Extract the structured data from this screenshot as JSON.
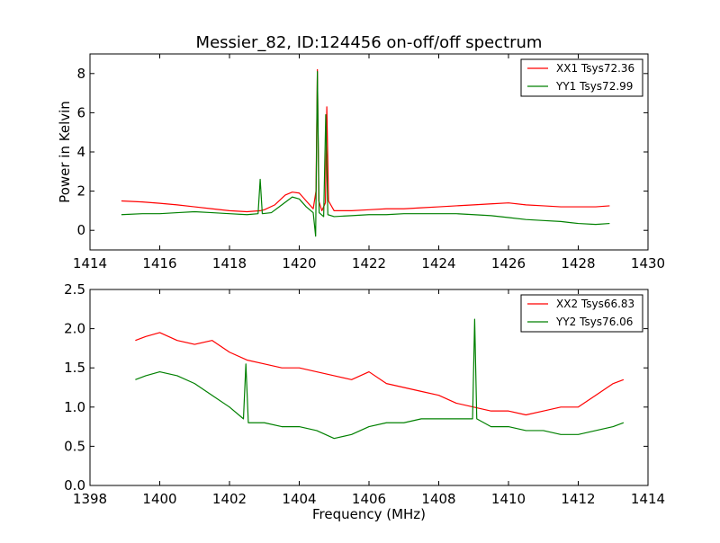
{
  "page": {
    "title": "Messier_82, ID:124456 on-off/off spectrum"
  },
  "chart_data": [
    {
      "type": "line",
      "ylabel": "Power in Kelvin",
      "xlabel": "",
      "xlim": [
        1414,
        1430
      ],
      "ylim": [
        -1,
        9
      ],
      "xticks": [
        1414,
        1416,
        1418,
        1420,
        1422,
        1424,
        1426,
        1428,
        1430
      ],
      "yticks": [
        0,
        2,
        4,
        6,
        8
      ],
      "legend_position": "top-right",
      "series": [
        {
          "name": "XX1 Tsys72.36",
          "color": "#ff0000",
          "points": [
            [
              1414.9,
              1.5
            ],
            [
              1415.5,
              1.45
            ],
            [
              1416.0,
              1.38
            ],
            [
              1416.5,
              1.3
            ],
            [
              1417.0,
              1.2
            ],
            [
              1417.5,
              1.1
            ],
            [
              1418.0,
              1.0
            ],
            [
              1418.5,
              0.95
            ],
            [
              1418.88,
              1.0
            ],
            [
              1419.0,
              1.05
            ],
            [
              1419.3,
              1.3
            ],
            [
              1419.6,
              1.8
            ],
            [
              1419.8,
              1.95
            ],
            [
              1420.0,
              1.9
            ],
            [
              1420.2,
              1.5
            ],
            [
              1420.4,
              1.1
            ],
            [
              1420.48,
              2.0
            ],
            [
              1420.52,
              8.2
            ],
            [
              1420.56,
              1.5
            ],
            [
              1420.65,
              1.0
            ],
            [
              1420.75,
              1.4
            ],
            [
              1420.79,
              6.3
            ],
            [
              1420.84,
              1.5
            ],
            [
              1421.0,
              1.0
            ],
            [
              1421.5,
              1.0
            ],
            [
              1422.0,
              1.05
            ],
            [
              1422.5,
              1.1
            ],
            [
              1423.0,
              1.1
            ],
            [
              1423.5,
              1.15
            ],
            [
              1424.0,
              1.2
            ],
            [
              1424.5,
              1.25
            ],
            [
              1425.0,
              1.3
            ],
            [
              1425.5,
              1.35
            ],
            [
              1426.0,
              1.4
            ],
            [
              1426.5,
              1.3
            ],
            [
              1427.0,
              1.25
            ],
            [
              1427.5,
              1.2
            ],
            [
              1428.0,
              1.2
            ],
            [
              1428.5,
              1.2
            ],
            [
              1428.9,
              1.25
            ]
          ]
        },
        {
          "name": "YY1 Tsys72.99",
          "color": "#008000",
          "points": [
            [
              1414.9,
              0.8
            ],
            [
              1415.5,
              0.85
            ],
            [
              1416.0,
              0.85
            ],
            [
              1416.5,
              0.9
            ],
            [
              1417.0,
              0.95
            ],
            [
              1417.5,
              0.9
            ],
            [
              1418.0,
              0.85
            ],
            [
              1418.5,
              0.8
            ],
            [
              1418.82,
              0.85
            ],
            [
              1418.88,
              2.6
            ],
            [
              1418.94,
              0.85
            ],
            [
              1419.2,
              0.9
            ],
            [
              1419.5,
              1.3
            ],
            [
              1419.8,
              1.7
            ],
            [
              1420.0,
              1.6
            ],
            [
              1420.2,
              1.2
            ],
            [
              1420.4,
              0.9
            ],
            [
              1420.47,
              -0.3
            ],
            [
              1420.52,
              8.1
            ],
            [
              1420.57,
              0.9
            ],
            [
              1420.7,
              0.7
            ],
            [
              1420.76,
              5.9
            ],
            [
              1420.82,
              0.8
            ],
            [
              1421.0,
              0.7
            ],
            [
              1421.5,
              0.75
            ],
            [
              1422.0,
              0.8
            ],
            [
              1422.5,
              0.8
            ],
            [
              1423.0,
              0.85
            ],
            [
              1423.5,
              0.85
            ],
            [
              1424.0,
              0.85
            ],
            [
              1424.5,
              0.85
            ],
            [
              1425.0,
              0.8
            ],
            [
              1425.5,
              0.75
            ],
            [
              1426.0,
              0.65
            ],
            [
              1426.5,
              0.55
            ],
            [
              1427.0,
              0.5
            ],
            [
              1427.5,
              0.45
            ],
            [
              1428.0,
              0.35
            ],
            [
              1428.5,
              0.3
            ],
            [
              1428.9,
              0.35
            ]
          ]
        }
      ]
    },
    {
      "type": "line",
      "ylabel": "",
      "xlabel": "Frequency (MHz)",
      "xlim": [
        1398,
        1414
      ],
      "ylim": [
        0,
        2.5
      ],
      "xticks": [
        1398,
        1400,
        1402,
        1404,
        1406,
        1408,
        1410,
        1412,
        1414
      ],
      "yticks": [
        0.0,
        0.5,
        1.0,
        1.5,
        2.0,
        2.5
      ],
      "legend_position": "top-right",
      "series": [
        {
          "name": "XX2 Tsys66.83",
          "color": "#ff0000",
          "points": [
            [
              1399.3,
              1.85
            ],
            [
              1399.6,
              1.9
            ],
            [
              1400.0,
              1.95
            ],
            [
              1400.5,
              1.85
            ],
            [
              1401.0,
              1.8
            ],
            [
              1401.5,
              1.85
            ],
            [
              1402.0,
              1.7
            ],
            [
              1402.5,
              1.6
            ],
            [
              1403.0,
              1.55
            ],
            [
              1403.5,
              1.5
            ],
            [
              1404.0,
              1.5
            ],
            [
              1404.5,
              1.45
            ],
            [
              1405.0,
              1.4
            ],
            [
              1405.5,
              1.35
            ],
            [
              1406.0,
              1.45
            ],
            [
              1406.5,
              1.3
            ],
            [
              1407.0,
              1.25
            ],
            [
              1407.5,
              1.2
            ],
            [
              1408.0,
              1.15
            ],
            [
              1408.5,
              1.05
            ],
            [
              1409.0,
              1.0
            ],
            [
              1409.5,
              0.95
            ],
            [
              1410.0,
              0.95
            ],
            [
              1410.5,
              0.9
            ],
            [
              1411.0,
              0.95
            ],
            [
              1411.5,
              1.0
            ],
            [
              1412.0,
              1.0
            ],
            [
              1412.5,
              1.15
            ],
            [
              1413.0,
              1.3
            ],
            [
              1413.3,
              1.35
            ]
          ]
        },
        {
          "name": "YY2 Tsys76.06",
          "color": "#008000",
          "points": [
            [
              1399.3,
              1.35
            ],
            [
              1399.6,
              1.4
            ],
            [
              1400.0,
              1.45
            ],
            [
              1400.5,
              1.4
            ],
            [
              1401.0,
              1.3
            ],
            [
              1401.5,
              1.15
            ],
            [
              1402.0,
              1.0
            ],
            [
              1402.4,
              0.85
            ],
            [
              1402.47,
              1.55
            ],
            [
              1402.54,
              0.8
            ],
            [
              1403.0,
              0.8
            ],
            [
              1403.5,
              0.75
            ],
            [
              1404.0,
              0.75
            ],
            [
              1404.5,
              0.7
            ],
            [
              1405.0,
              0.6
            ],
            [
              1405.5,
              0.65
            ],
            [
              1406.0,
              0.75
            ],
            [
              1406.5,
              0.8
            ],
            [
              1407.0,
              0.8
            ],
            [
              1407.5,
              0.85
            ],
            [
              1408.0,
              0.85
            ],
            [
              1408.5,
              0.85
            ],
            [
              1408.97,
              0.85
            ],
            [
              1409.03,
              2.12
            ],
            [
              1409.09,
              0.85
            ],
            [
              1409.5,
              0.75
            ],
            [
              1410.0,
              0.75
            ],
            [
              1410.5,
              0.7
            ],
            [
              1411.0,
              0.7
            ],
            [
              1411.5,
              0.65
            ],
            [
              1412.0,
              0.65
            ],
            [
              1412.5,
              0.7
            ],
            [
              1413.0,
              0.75
            ],
            [
              1413.3,
              0.8
            ]
          ]
        }
      ]
    }
  ]
}
